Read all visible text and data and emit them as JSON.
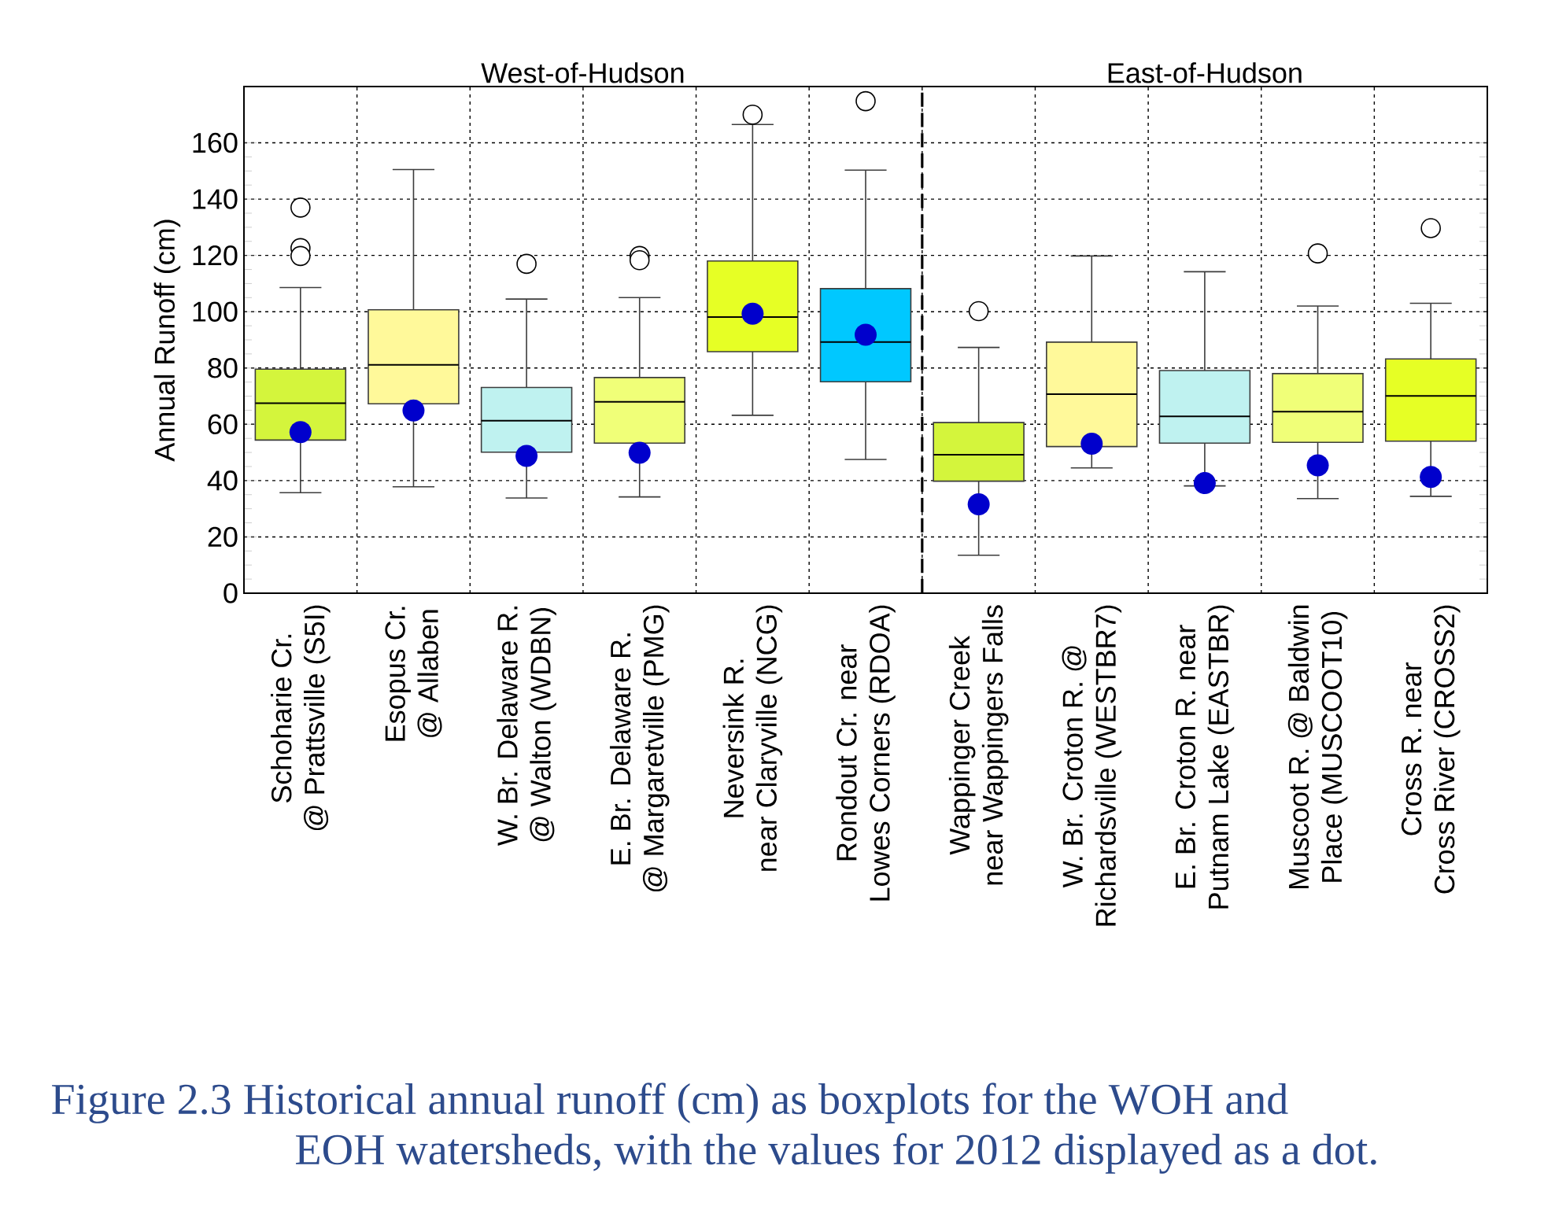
{
  "chart_data": {
    "type": "box",
    "ylabel": "Annual Runoff (cm)",
    "categories": [
      "Schoharie Cr. @ Prattsville (S5I)",
      "Esopus Cr. @ Allaben",
      "W. Br. Delaware R. @ Walton (WDBN)",
      "E. Br. Delaware R. @ Margaretville (PMG)",
      "Neversink R. near Claryville (NCG)",
      "Rondout Cr. near Lowes Corners (RDOA)",
      "Wappinger Creek near Wappingers Falls",
      "W. Br. Croton R. @ Richardsville (WESTBR7)",
      "E. Br. Croton R. near Putnam Lake (EASTBR)",
      "Muscoot R. @ Baldwin Place (MUSCOOT10)",
      "Cross R. near Cross River (CROSS2)"
    ],
    "boxes": [
      {
        "low": 35.7,
        "q1": 54.4,
        "median": 67.5,
        "q3": 79.6,
        "high": 108.6,
        "outliers": [
          137,
          122.6,
          119.8
        ]
      },
      {
        "low": 37.8,
        "q1": 67.3,
        "median": 81.1,
        "q3": 100.7,
        "high": 150.5
      },
      {
        "low": 33.8,
        "q1": 50.1,
        "median": 61.3,
        "q3": 73.1,
        "high": 104.5,
        "outliers": [
          117
        ]
      },
      {
        "low": 34.2,
        "q1": 53.3,
        "median": 68,
        "q3": 76.6,
        "high": 105,
        "outliers": [
          119.8,
          118.3
        ]
      },
      {
        "low": 63.2,
        "q1": 85.8,
        "median": 98.1,
        "q3": 118,
        "high": 166.5,
        "outliers": [
          170
        ]
      },
      {
        "low": 47.5,
        "q1": 75.1,
        "median": 89.2,
        "q3": 108.2,
        "high": 150.3,
        "outliers": [
          174.8
        ]
      },
      {
        "low": 13.5,
        "q1": 39.8,
        "median": 49.2,
        "q3": 60.6,
        "high": 87.3,
        "outliers": [
          100.2
        ]
      },
      {
        "low": 44.5,
        "q1": 52.1,
        "median": 70.7,
        "q3": 89.2,
        "high": 119.8
      },
      {
        "low": 38.1,
        "q1": 53.3,
        "median": 62.8,
        "q3": 79.1,
        "high": 114.2
      },
      {
        "low": 33.6,
        "q1": 53.6,
        "median": 64.5,
        "q3": 78,
        "high": 102,
        "outliers": [
          120.7
        ]
      },
      {
        "low": 34.4,
        "q1": 54,
        "median": 70.1,
        "q3": 83.2,
        "high": 103,
        "outliers": [
          129.7
        ]
      }
    ],
    "colors": [
      "#d4f53c",
      "#fff99a",
      "#bff2f0",
      "#f0ff78",
      "#e6ff25",
      "#00c8ff",
      "#d4f53c",
      "#fff99a",
      "#bff2f0",
      "#f0ff78",
      "#e6ff25"
    ],
    "series": [
      {
        "type": "scatter",
        "color": "#0000cc",
        "marker": "circle",
        "x": [
          "Schoharie Cr. @ Prattsville (S5I)",
          "Esopus Cr. @ Allaben",
          "W. Br. Delaware R. @ Walton (WDBN)",
          "E. Br. Delaware R. @ Margaretville (PMG)",
          "Neversink R. near Claryville (NCG)",
          "Rondout Cr. near Lowes Corners (RDOA)",
          "Wappinger Creek near Wappingers Falls",
          "W. Br. Croton R. @ Richardsville (WESTBR7)",
          "E. Br. Croton R. near Putnam Lake (EASTBR)",
          "Muscoot R. @ Baldwin Place (MUSCOOT10)",
          "Cross R. near Cross River (CROSS2)"
        ],
        "values": [
          57.2,
          64.9,
          48.8,
          49.9,
          99.3,
          91.8,
          31.6,
          53.1,
          39.1,
          45.4,
          41.3
        ]
      }
    ],
    "ylim": [
      0,
      180
    ],
    "yticks": [
      0,
      20,
      40,
      60,
      80,
      100,
      120,
      140,
      160
    ],
    "grid": true,
    "annotations": [
      "West-of-Hudson",
      "East-of-Hudson",
      "Figure 2.3  Historical annual runoff (cm) as boxplots for the WOH and EOH watersheds, with the values for 2012 displayed as a dot."
    ]
  }
}
